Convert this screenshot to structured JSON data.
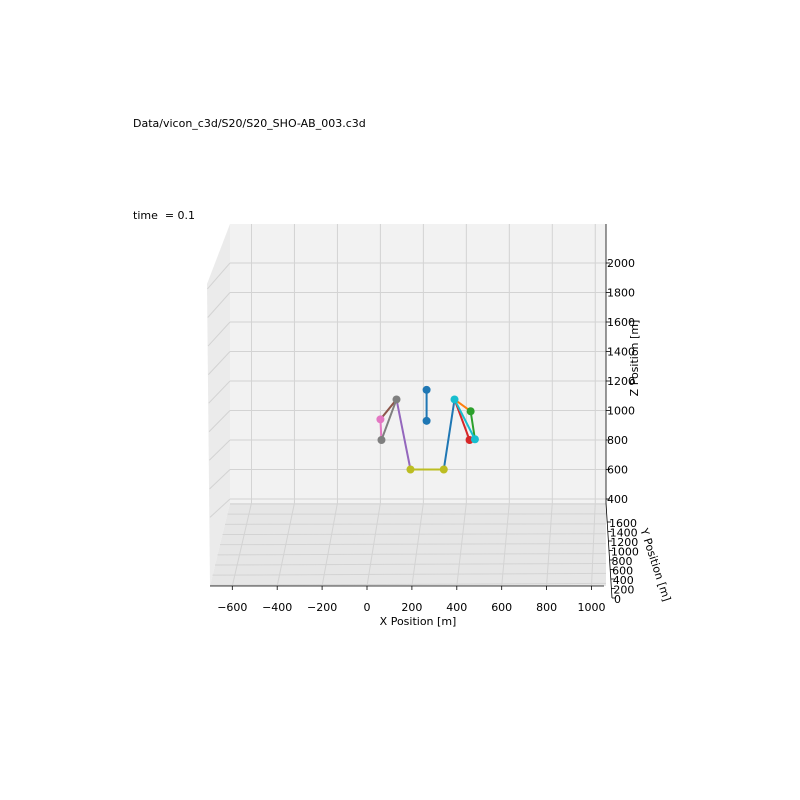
{
  "title": "Data/vicon_c3d/S20/S20_SHO-AB_003.c3d",
  "time_label": "time  = 0.1",
  "chart_data": {
    "type": "scatter-3d",
    "xlabel": "X Position [m]",
    "ylabel": "Y Position [m]",
    "zlabel": "Z Position [m]",
    "x_ticks": [
      -600,
      -400,
      -200,
      0,
      200,
      400,
      600,
      800,
      1000
    ],
    "y_ticks": [
      0,
      200,
      400,
      600,
      800,
      1000,
      1200,
      1400,
      1600
    ],
    "z_ticks": [
      400,
      600,
      800,
      1000,
      1200,
      1400,
      1600,
      1800,
      2000
    ],
    "xlim": [
      -700,
      1050
    ],
    "ylim": [
      0,
      1650
    ],
    "zlim": [
      200,
      2050
    ],
    "grid": true,
    "points": [
      {
        "id": "p1",
        "x": 215,
        "z": 1140,
        "color": "#1f77b4"
      },
      {
        "id": "p2",
        "x": 215,
        "z": 930,
        "color": "#1f77b4"
      },
      {
        "id": "p3",
        "x": 75,
        "z": 1075,
        "color": "#7f7f7f"
      },
      {
        "id": "p4",
        "x": 0,
        "z": 940,
        "color": "#e377c2"
      },
      {
        "id": "p5",
        "x": 5,
        "z": 800,
        "color": "#7f7f7f"
      },
      {
        "id": "p6",
        "x": 140,
        "z": 600,
        "color": "#bcbd22"
      },
      {
        "id": "p7",
        "x": 295,
        "z": 600,
        "color": "#bcbd22"
      },
      {
        "id": "p8",
        "x": 345,
        "z": 1075,
        "color": "#17becf"
      },
      {
        "id": "p9",
        "x": 420,
        "z": 995,
        "color": "#2ca02c"
      },
      {
        "id": "p10",
        "x": 415,
        "z": 800,
        "color": "#d62728"
      },
      {
        "id": "p11",
        "x": 440,
        "z": 805,
        "color": "#17becf"
      }
    ],
    "segments": [
      {
        "from": "p1",
        "to": "p2",
        "color": "#1f77b4"
      },
      {
        "from": "p3",
        "to": "p4",
        "color": "#8c564b"
      },
      {
        "from": "p4",
        "to": "p5",
        "color": "#e377c2"
      },
      {
        "from": "p3",
        "to": "p5",
        "color": "#7f7f7f"
      },
      {
        "from": "p3",
        "to": "p6",
        "color": "#9467bd"
      },
      {
        "from": "p6",
        "to": "p7",
        "color": "#bcbd22"
      },
      {
        "from": "p7",
        "to": "p8",
        "color": "#1f77b4"
      },
      {
        "from": "p8",
        "to": "p9",
        "color": "#ff7f0e"
      },
      {
        "from": "p8",
        "to": "p10",
        "color": "#d62728"
      },
      {
        "from": "p9",
        "to": "p11",
        "color": "#2ca02c"
      },
      {
        "from": "p8",
        "to": "p11",
        "color": "#17becf"
      }
    ]
  }
}
